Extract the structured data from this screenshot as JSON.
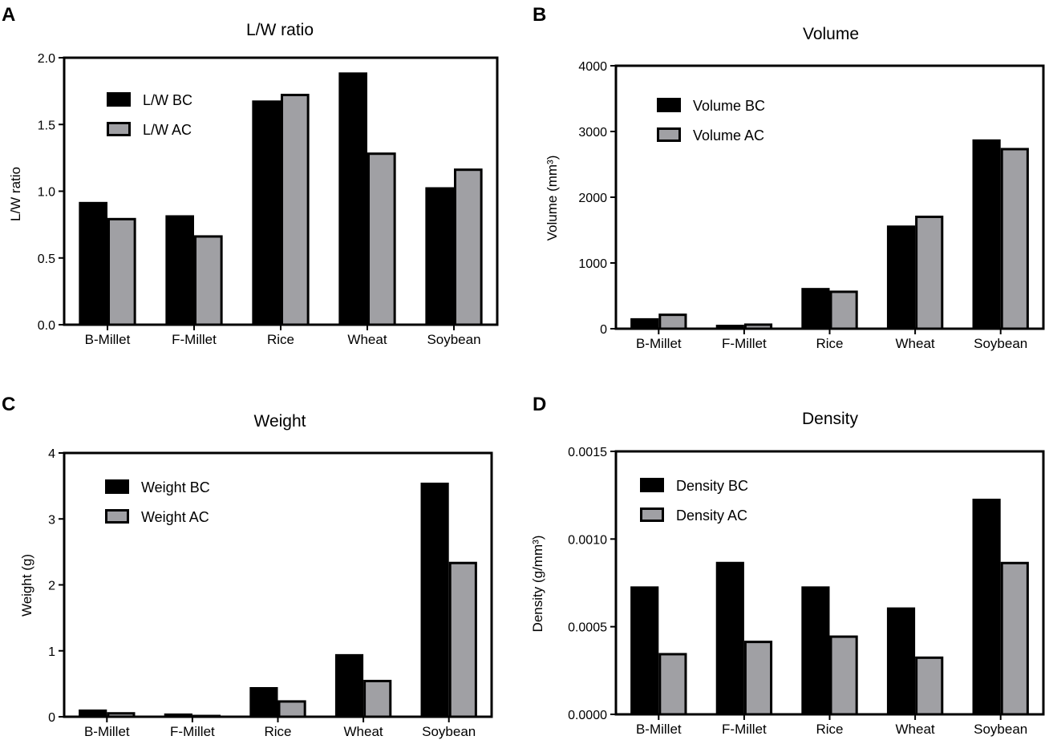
{
  "chart_data": [
    {
      "panel": "A",
      "type": "bar",
      "title": "L/W ratio",
      "xlabel": "",
      "ylabel": "L/W ratio",
      "ylim": [
        0,
        2.0
      ],
      "yticks": [
        "0.0",
        "0.5",
        "1.0",
        "1.5",
        "2.0"
      ],
      "categories": [
        "B-Millet",
        "F-Millet",
        "Rice",
        "Wheat",
        "Soybean"
      ],
      "legend_position": "top-left",
      "series": [
        {
          "name": "L/W BC",
          "color": "#000000",
          "values": [
            0.92,
            0.82,
            1.68,
            1.89,
            1.03
          ]
        },
        {
          "name": "L/W AC",
          "color": "#a0a0a4",
          "values": [
            0.8,
            0.67,
            1.73,
            1.29,
            1.17
          ]
        }
      ]
    },
    {
      "panel": "B",
      "type": "bar",
      "title": "Volume",
      "xlabel": "",
      "ylabel": "Volume (mm³)",
      "ylim": [
        0,
        4000
      ],
      "yticks": [
        "0",
        "1000",
        "2000",
        "3000",
        "4000"
      ],
      "categories": [
        "B-Millet",
        "F-Millet",
        "Rice",
        "Wheat",
        "Soybean"
      ],
      "legend_position": "top-left",
      "series": [
        {
          "name": "Volume BC",
          "color": "#000000",
          "values": [
            160,
            60,
            620,
            1570,
            2880
          ]
        },
        {
          "name": "Volume AC",
          "color": "#a0a0a4",
          "values": [
            230,
            80,
            580,
            1720,
            2750
          ]
        }
      ]
    },
    {
      "panel": "C",
      "type": "bar",
      "title": "Weight",
      "xlabel": "",
      "ylabel": "Weight (g)",
      "ylim": [
        0,
        4
      ],
      "yticks": [
        "0",
        "1",
        "2",
        "3",
        "4"
      ],
      "categories": [
        "B-Millet",
        "F-Millet",
        "Rice",
        "Wheat",
        "Soybean"
      ],
      "legend_position": "top-left",
      "series": [
        {
          "name": "Weight BC",
          "color": "#000000",
          "values": [
            0.11,
            0.05,
            0.45,
            0.95,
            3.55
          ]
        },
        {
          "name": "Weight AC",
          "color": "#a0a0a4",
          "values": [
            0.07,
            0.03,
            0.25,
            0.56,
            2.35
          ]
        }
      ]
    },
    {
      "panel": "D",
      "type": "bar",
      "title": "Density",
      "xlabel": "",
      "ylabel": "Density (g/mm³)",
      "ylim": [
        0,
        0.0015
      ],
      "yticks": [
        "0.0000",
        "0.0005",
        "0.0010",
        "0.0015"
      ],
      "categories": [
        "B-Millet",
        "F-Millet",
        "Rice",
        "Wheat",
        "Soybean"
      ],
      "legend_position": "top-left",
      "series": [
        {
          "name": "Density BC",
          "color": "#000000",
          "values": [
            0.00073,
            0.00087,
            0.00073,
            0.00061,
            0.00123
          ]
        },
        {
          "name": "Density AC",
          "color": "#a0a0a4",
          "values": [
            0.00035,
            0.00042,
            0.00045,
            0.00033,
            0.00087
          ]
        }
      ]
    }
  ]
}
